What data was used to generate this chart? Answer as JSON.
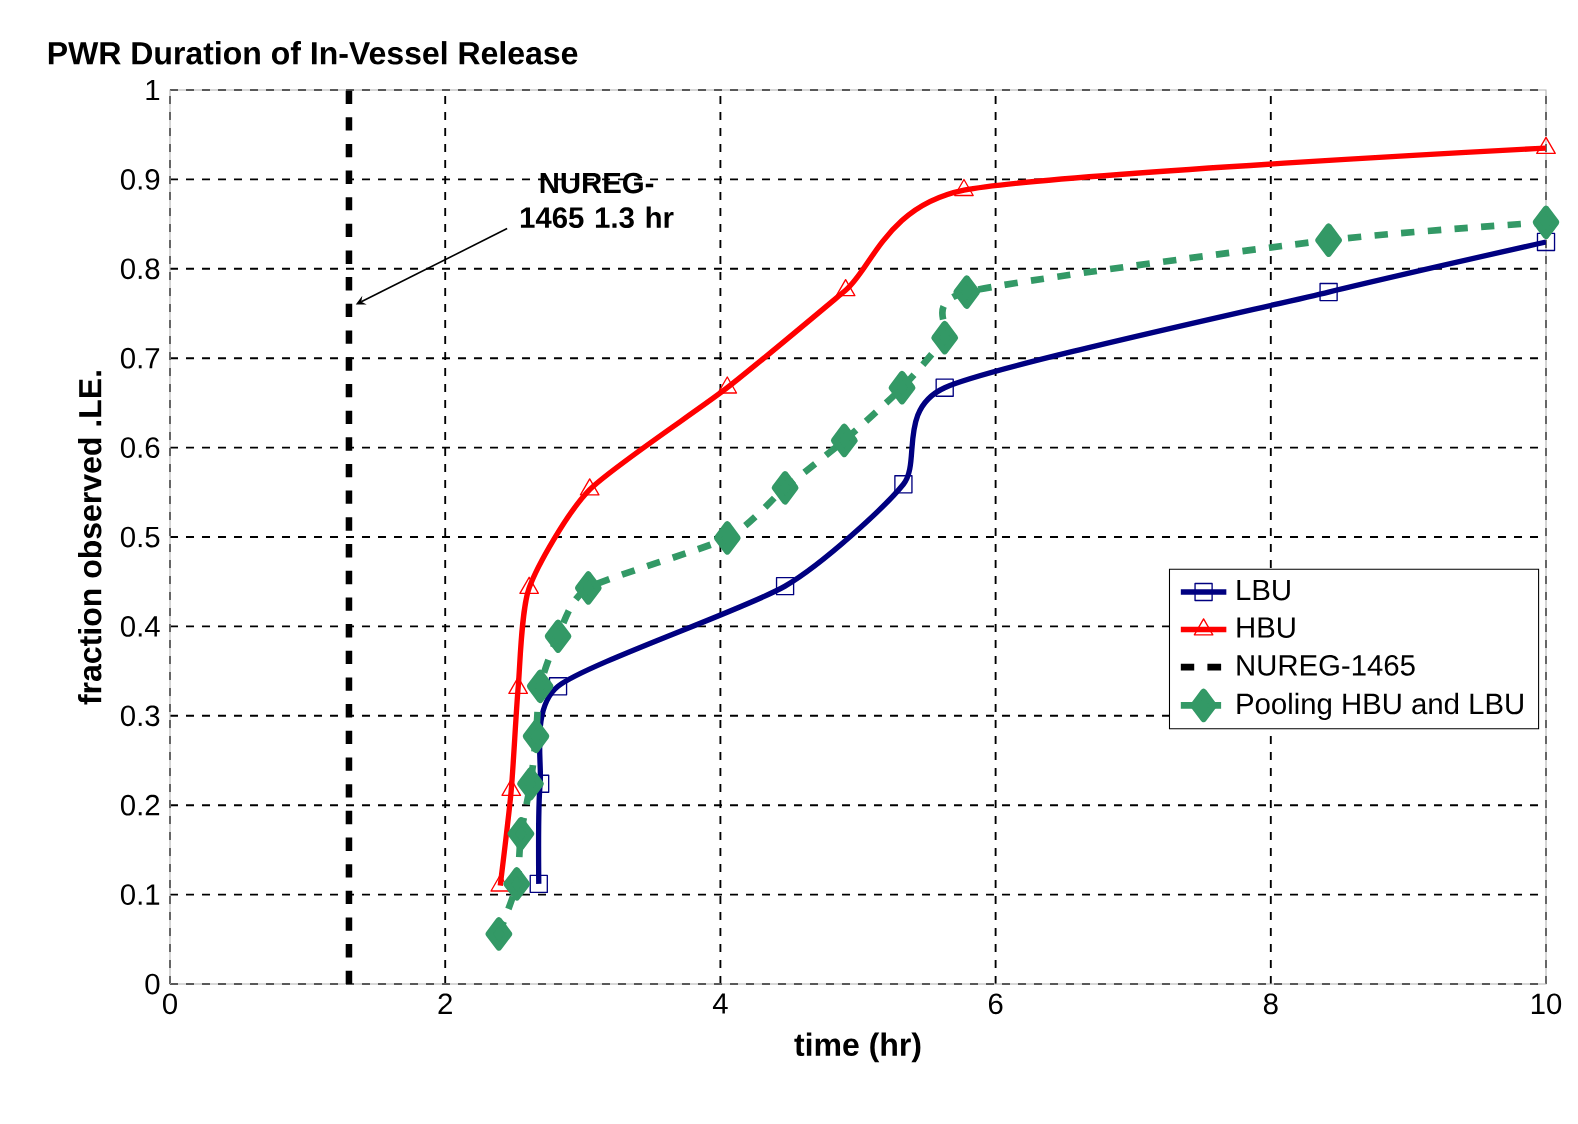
{
  "chart_data": {
    "type": "line",
    "title": "PWR Duration of In-Vessel Release",
    "xlabel": "time (hr)",
    "ylabel": "fraction observed .LE.",
    "xlim": [
      0,
      10
    ],
    "ylim": [
      0,
      1
    ],
    "xticks": [
      0,
      2,
      4,
      6,
      8,
      10
    ],
    "yticks": [
      0,
      0.1,
      0.2,
      0.3,
      0.4,
      0.5,
      0.6,
      0.7,
      0.8,
      0.9,
      1
    ],
    "grid": true,
    "legend": "right",
    "series": [
      {
        "name": "LBU",
        "color": "#000080",
        "marker": "square",
        "line_style": "solid",
        "x": [
          2.68,
          2.69,
          2.82,
          4.47,
          5.33,
          5.63,
          8.42,
          10
        ],
        "values": [
          0.112,
          0.224,
          0.333,
          0.445,
          0.559,
          0.667,
          0.774,
          0.83
        ]
      },
      {
        "name": "HBU",
        "color": "#ff0000",
        "marker": "triangle",
        "line_style": "solid",
        "x": [
          2.4,
          2.48,
          2.53,
          2.61,
          3.05,
          4.05,
          4.91,
          5.77,
          10
        ],
        "values": [
          0.11,
          0.217,
          0.331,
          0.443,
          0.553,
          0.667,
          0.776,
          0.888,
          0.935
        ]
      },
      {
        "name": "NUREG-1465",
        "color": "#000000",
        "marker": "none",
        "line_style": "dashed",
        "x": [
          1.3,
          1.3
        ],
        "values": [
          0,
          1
        ]
      },
      {
        "name": "Pooling HBU and LBU",
        "color": "#339966",
        "marker": "diamond",
        "line_style": "dashed",
        "x": [
          2.39,
          2.52,
          2.55,
          2.62,
          2.66,
          2.69,
          2.82,
          3.04,
          4.05,
          4.47,
          4.9,
          5.32,
          5.63,
          5.79,
          8.42,
          10
        ],
        "values": [
          0.056,
          0.112,
          0.168,
          0.224,
          0.277,
          0.333,
          0.389,
          0.443,
          0.499,
          0.555,
          0.608,
          0.667,
          0.723,
          0.774,
          0.832,
          0.852
        ]
      }
    ],
    "annotations": [
      {
        "text": "NUREG-1465 1.3 hr",
        "x": 1.3,
        "y": 0.76
      }
    ]
  }
}
